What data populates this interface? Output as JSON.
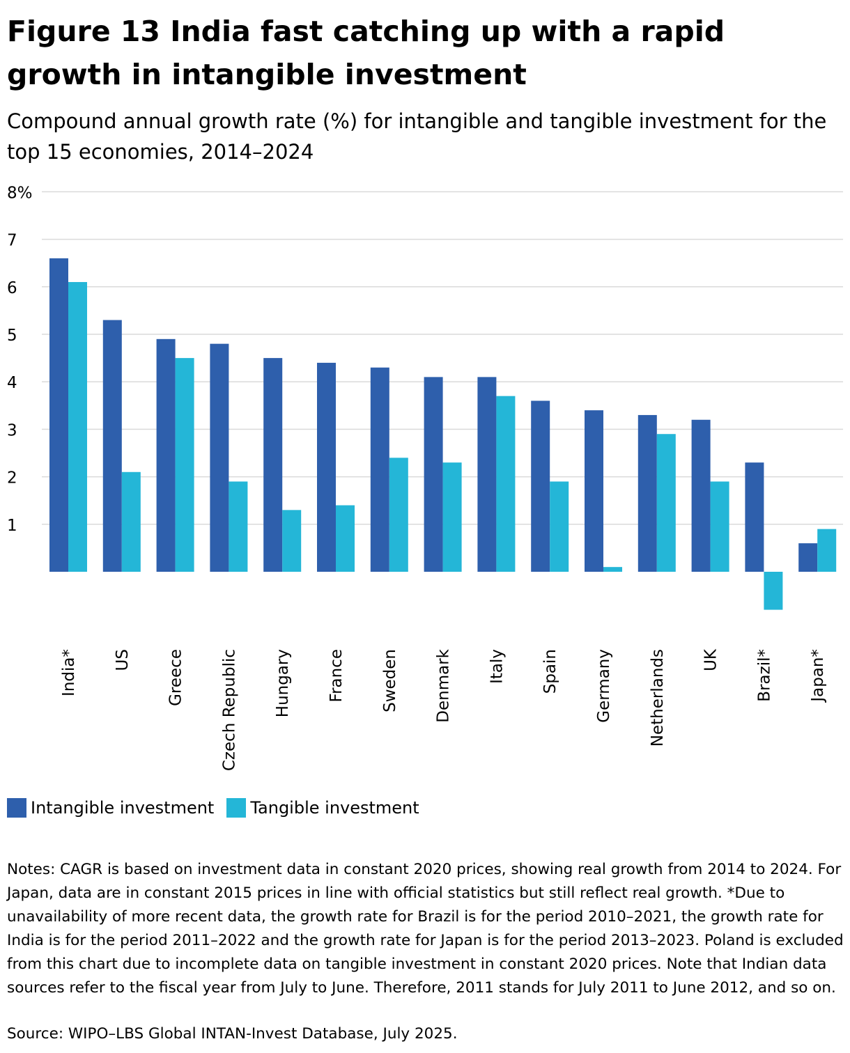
{
  "title": "Figure 13 India fast catching up with a rapid growth in intangible investment",
  "subtitle": "Compound annual growth rate (%) for intangible and tangible investment for the top 15 economies, 2014–2024",
  "colors": {
    "intangible": "#2E5FAC",
    "tangible": "#24B6D7",
    "grid": "#DADADA"
  },
  "chart_data": {
    "type": "bar",
    "title": "Compound annual growth rate (%) for intangible and tangible investment for the top 15 economies, 2014–2024",
    "xlabel": "",
    "ylabel": "",
    "ylim": [
      -1,
      8
    ],
    "yticks": [
      1,
      2,
      3,
      4,
      5,
      6,
      7,
      8
    ],
    "ytick_labels": [
      "1",
      "2",
      "3",
      "4",
      "5",
      "6",
      "7",
      "8%"
    ],
    "categories": [
      "India*",
      "US",
      "Greece",
      "Czech Republic",
      "Hungary",
      "France",
      "Sweden",
      "Denmark",
      "Italy",
      "Spain",
      "Germany",
      "Netherlands",
      "UK",
      "Brazil*",
      "Japan*"
    ],
    "series": [
      {
        "name": "Intangible investment",
        "values": [
          6.6,
          5.3,
          4.9,
          4.8,
          4.5,
          4.4,
          4.3,
          4.1,
          4.1,
          3.6,
          3.4,
          3.3,
          3.2,
          2.3,
          0.6
        ]
      },
      {
        "name": "Tangible investment",
        "values": [
          6.1,
          2.1,
          4.5,
          1.9,
          1.3,
          1.4,
          2.4,
          2.3,
          3.7,
          1.9,
          0.1,
          2.9,
          1.9,
          -0.8,
          0.9
        ]
      }
    ],
    "legend": "bottom-left",
    "grid": true
  },
  "legend": {
    "intangible_label": "Intangible investment",
    "tangible_label": "Tangible investment"
  },
  "notes": "Notes: CAGR is based on investment data in constant 2020 prices, showing real growth from 2014 to 2024. For Japan, data are in constant 2015 prices in line with official statistics but still reflect real growth. *Due to unavailability of more recent data, the growth rate for Brazil is for the period 2010–2021, the growth rate for India is for the period 2011–2022 and the growth rate for Japan is for the period 2013–2023. Poland is excluded from this chart due to incomplete data on tangible investment in constant 2020 prices. Note that Indian data sources refer to the fiscal year from July to June. Therefore, 2011 stands for July 2011 to June 2012, and so on.",
  "source": "Source: WIPO–LBS Global INTAN-Invest Database, July 2025."
}
